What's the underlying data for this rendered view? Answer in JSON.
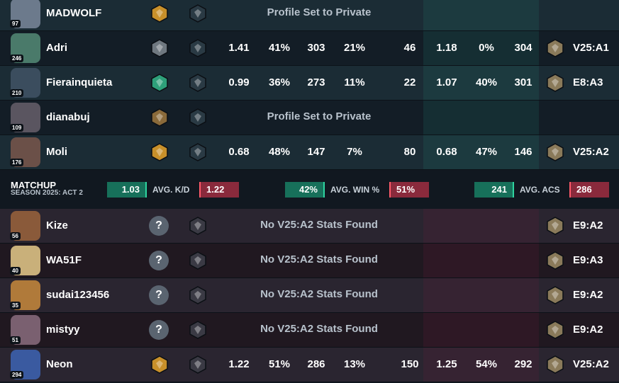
{
  "team_a": [
    {
      "name": "MADWOLF",
      "level": "97",
      "message": "Profile Set to Private"
    },
    {
      "name": "Adri",
      "level": "246",
      "stats": [
        "1.41",
        "41%",
        "303",
        "21%",
        "46",
        "1.18",
        "0%",
        "304"
      ],
      "peak": "V25:A1"
    },
    {
      "name": "Fierainquieta",
      "level": "210",
      "stats": [
        "0.99",
        "36%",
        "273",
        "11%",
        "22",
        "1.07",
        "40%",
        "301"
      ],
      "peak": "E8:A3"
    },
    {
      "name": "dianabuj",
      "level": "109",
      "message": "Profile Set to Private"
    },
    {
      "name": "Moli",
      "level": "176",
      "stats": [
        "0.68",
        "48%",
        "147",
        "7%",
        "80",
        "0.68",
        "47%",
        "146"
      ],
      "peak": "V25:A2"
    }
  ],
  "matchup": {
    "title": "MATCHUP",
    "subtitle": "SEASON 2025: ACT 2",
    "items": [
      {
        "left": "1.03",
        "label": "AVG. K/D",
        "right": "1.22"
      },
      {
        "left": "42%",
        "label": "AVG. WIN %",
        "right": "51%"
      },
      {
        "left": "241",
        "label": "AVG. ACS",
        "right": "286"
      }
    ]
  },
  "team_b": [
    {
      "name": "Kize",
      "level": "56",
      "rank": "?",
      "message": "No V25:A2 Stats Found",
      "peak": "E9:A2"
    },
    {
      "name": "WA51F",
      "level": "40",
      "rank": "?",
      "message": "No V25:A2 Stats Found",
      "peak": "E9:A3"
    },
    {
      "name": "sudai123456",
      "level": "35",
      "rank": "?",
      "message": "No V25:A2 Stats Found",
      "peak": "E9:A2"
    },
    {
      "name": "mistyy",
      "level": "51",
      "rank": "?",
      "message": "No V25:A2 Stats Found",
      "peak": "E9:A2"
    },
    {
      "name": "Neon",
      "level": "294",
      "stats": [
        "1.22",
        "51%",
        "286",
        "13%",
        "150",
        "1.25",
        "54%",
        "292"
      ],
      "peak": "V25:A2"
    }
  ]
}
